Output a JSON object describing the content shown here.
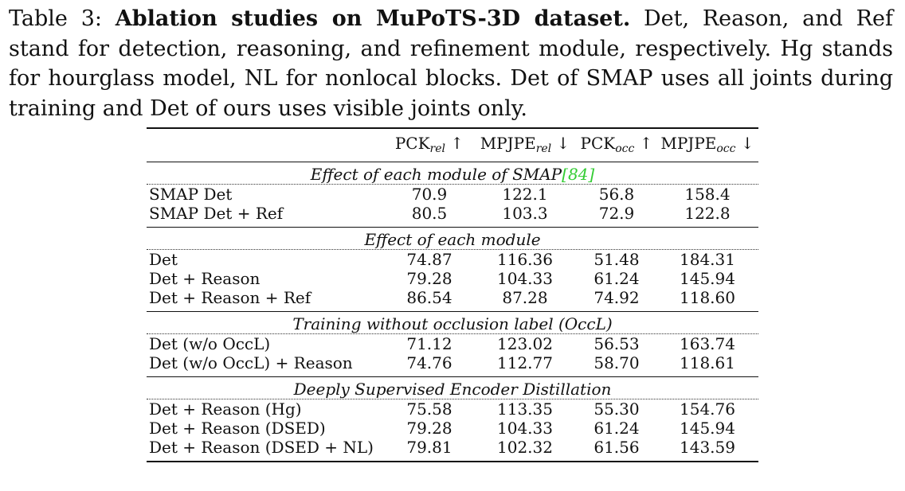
{
  "caption": {
    "label": "Table 3:",
    "title": "Ablation studies on MuPoTS-3D dataset.",
    "text": "Det, Reason, and Ref stand for detection, reasoning, and refinement module, respectively. Hg stands for hourglass model, NL for nonlocal blocks. Det of SMAP uses all joints during training and Det of ours uses visible joints only."
  },
  "columns": [
    {
      "base": "PCK",
      "sub": "rel",
      "arrow": "↑"
    },
    {
      "base": "MPJPE",
      "sub": "rel",
      "arrow": "↓"
    },
    {
      "base": "PCK",
      "sub": "occ",
      "arrow": "↑"
    },
    {
      "base": "MPJPE",
      "sub": "occ",
      "arrow": "↓"
    }
  ],
  "sections": [
    {
      "title": "Effect of each module of SMAP",
      "cite": "[84]",
      "rows": [
        {
          "name": "SMAP Det",
          "values": [
            "70.9",
            "122.1",
            "56.8",
            "158.4"
          ]
        },
        {
          "name": "SMAP Det + Ref",
          "values": [
            "80.5",
            "103.3",
            "72.9",
            "122.8"
          ]
        }
      ]
    },
    {
      "title": "Effect of each module",
      "cite": "",
      "rows": [
        {
          "name": "Det",
          "values": [
            "74.87",
            "116.36",
            "51.48",
            "184.31"
          ]
        },
        {
          "name": "Det + Reason",
          "values": [
            "79.28",
            "104.33",
            "61.24",
            "145.94"
          ]
        },
        {
          "name": "Det + Reason + Ref",
          "values": [
            "86.54",
            "87.28",
            "74.92",
            "118.60"
          ]
        }
      ]
    },
    {
      "title": "Training without occlusion label (OccL)",
      "cite": "",
      "rows": [
        {
          "name": "Det (w/o OccL)",
          "values": [
            "71.12",
            "123.02",
            "56.53",
            "163.74"
          ]
        },
        {
          "name": "Det (w/o OccL) + Reason",
          "values": [
            "74.76",
            "112.77",
            "58.70",
            "118.61"
          ]
        }
      ]
    },
    {
      "title": "Deeply Supervised Encoder Distillation",
      "cite": "",
      "rows": [
        {
          "name": "Det + Reason (Hg)",
          "values": [
            "75.58",
            "113.35",
            "55.30",
            "154.76"
          ]
        },
        {
          "name": "Det + Reason (DSED)",
          "values": [
            "79.28",
            "104.33",
            "61.24",
            "145.94"
          ]
        },
        {
          "name": "Det + Reason (DSED + NL)",
          "values": [
            "79.81",
            "102.32",
            "61.56",
            "143.59"
          ]
        }
      ]
    }
  ]
}
